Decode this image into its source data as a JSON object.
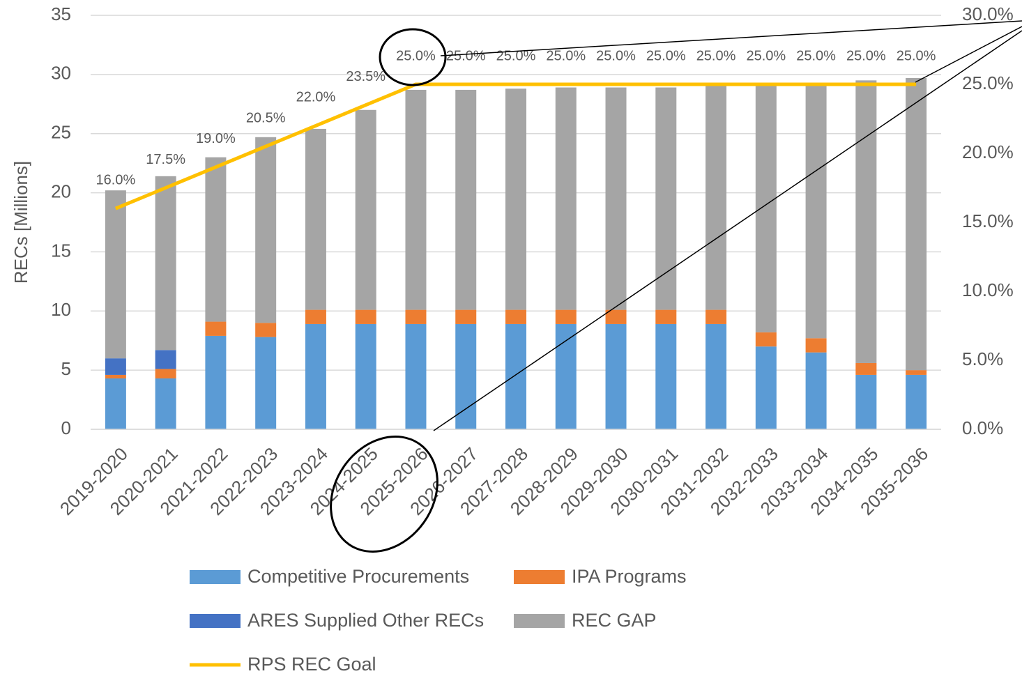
{
  "chart_data": {
    "type": "bar",
    "stacked": true,
    "y_label": "RECs [Millions]",
    "categories": [
      "2019-2020",
      "2020-2021",
      "2021-2022",
      "2022-2023",
      "2023-2024",
      "2024-2025",
      "2025-2026",
      "2026-2027",
      "2027-2028",
      "2028-2029",
      "2029-2030",
      "2030-2031",
      "2031-2032",
      "2032-2033",
      "2033-2034",
      "2034-2035",
      "2035-2036"
    ],
    "series": [
      {
        "name": "Competitive Procurements",
        "color": "#5b9bd5",
        "values": [
          4.3,
          4.3,
          7.9,
          7.8,
          8.9,
          8.9,
          8.9,
          8.9,
          8.9,
          8.9,
          8.9,
          8.9,
          8.9,
          7.0,
          6.5,
          4.6,
          4.6
        ]
      },
      {
        "name": "IPA Programs",
        "color": "#ed7d31",
        "values": [
          0.3,
          0.8,
          1.2,
          1.2,
          1.2,
          1.2,
          1.2,
          1.2,
          1.2,
          1.2,
          1.2,
          1.2,
          1.2,
          1.2,
          1.2,
          1.0,
          0.4
        ]
      },
      {
        "name": "ARES Supplied Other RECs",
        "color": "#4472c4",
        "values": [
          1.4,
          1.6,
          0,
          0,
          0,
          0,
          0,
          0,
          0,
          0,
          0,
          0,
          0,
          0,
          0,
          0,
          0
        ]
      },
      {
        "name": "REC GAP",
        "color": "#a5a5a5",
        "values": [
          14.2,
          14.7,
          13.9,
          15.7,
          15.3,
          16.9,
          18.6,
          18.6,
          18.7,
          18.8,
          18.8,
          18.8,
          19.0,
          21.0,
          21.6,
          23.9,
          24.7
        ]
      },
      {
        "name": "RPS REC Goal",
        "color": "#ffc000",
        "type": "line",
        "axis": "y2",
        "values": [
          16,
          17.5,
          19,
          20.5,
          22,
          23.5,
          25,
          25,
          25,
          25,
          25,
          25,
          25,
          25,
          25,
          25,
          25
        ],
        "value_labels": [
          "16.0%",
          "17.5%",
          "19.0%",
          "20.5%",
          "22.0%",
          "23.5%",
          "25.0%",
          "25.0%",
          "25.0%",
          "25.0%",
          "25.0%",
          "25.0%",
          "25.0%",
          "25.0%",
          "25.0%",
          "25.0%",
          "25.0%"
        ]
      }
    ],
    "ylim": [
      0,
      35
    ],
    "yticks": [
      0,
      5,
      10,
      15,
      20,
      25,
      30,
      35
    ],
    "y2lim": [
      0,
      30
    ],
    "y2ticks": [
      {
        "value": 0,
        "label": "0.0%"
      },
      {
        "value": 5,
        "label": "5.0%"
      },
      {
        "value": 10,
        "label": "10.0%"
      },
      {
        "value": 15,
        "label": "15.0%"
      },
      {
        "value": 20,
        "label": "20.0%"
      },
      {
        "value": 25,
        "label": "25.0%"
      },
      {
        "value": 30,
        "label": "30.0%"
      }
    ],
    "grid": true
  }
}
